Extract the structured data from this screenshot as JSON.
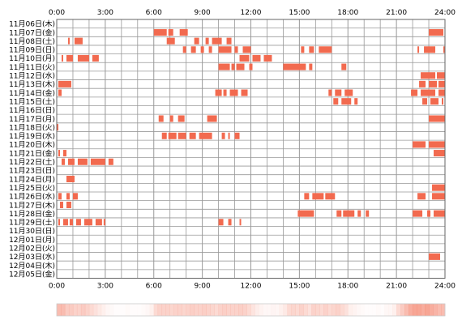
{
  "chart_data": {
    "type": "heatmap",
    "x_ticks": [
      "0:00",
      "3:00",
      "6:00",
      "9:00",
      "12:00",
      "15:00",
      "18:00",
      "21:00",
      "24:00"
    ],
    "x_range_hours": [
      0,
      24
    ],
    "days": [
      "11月06日(木)",
      "11月07日(金)",
      "11月08日(土)",
      "11月09日(日)",
      "11月10日(月)",
      "11月11日(火)",
      "11月12日(水)",
      "11月13日(木)",
      "11月14日(金)",
      "11月15日(土)",
      "11月16日(日)",
      "11月17日(月)",
      "11月18日(火)",
      "11月19日(水)",
      "11月20日(木)",
      "11月21日(金)",
      "11月22日(土)",
      "11月23日(日)",
      "11月24日(月)",
      "11月25日(火)",
      "11月26日(水)",
      "11月27日(木)",
      "11月28日(金)",
      "11月29日(土)",
      "11月30日(日)",
      "12月01日(月)",
      "12月02日(火)",
      "12月03日(水)",
      "12月04日(木)",
      "12月05日(金)"
    ],
    "activity_color": "#f26a4f",
    "grid_color": "#999999",
    "rows": [
      [],
      [
        [
          6.0,
          6.8
        ],
        [
          6.9,
          7.2
        ],
        [
          7.6,
          8.1
        ],
        [
          23.0,
          23.9
        ]
      ],
      [
        [
          0.7,
          0.8
        ],
        [
          1.1,
          1.6
        ],
        [
          6.8,
          7.3
        ],
        [
          8.5,
          8.8
        ],
        [
          9.2,
          9.4
        ],
        [
          9.6,
          10.2
        ],
        [
          10.5,
          10.8
        ]
      ],
      [
        [
          7.8,
          8.0
        ],
        [
          8.3,
          8.6
        ],
        [
          8.9,
          9.1
        ],
        [
          9.4,
          9.6
        ],
        [
          10.0,
          10.8
        ],
        [
          11.0,
          11.2
        ],
        [
          11.5,
          12.0
        ],
        [
          15.1,
          15.3
        ],
        [
          15.6,
          15.9
        ],
        [
          16.2,
          17.0
        ],
        [
          22.3,
          22.4
        ],
        [
          22.7,
          23.4
        ],
        [
          23.9,
          24.0
        ]
      ],
      [
        [
          0.3,
          0.4
        ],
        [
          0.6,
          1.0
        ],
        [
          1.3,
          2.0
        ],
        [
          2.2,
          2.6
        ],
        [
          11.3,
          11.9
        ],
        [
          12.1,
          12.6
        ],
        [
          12.8,
          13.3
        ]
      ],
      [
        [
          10.0,
          10.7
        ],
        [
          10.8,
          11.0
        ],
        [
          11.1,
          11.6
        ],
        [
          11.9,
          12.1
        ],
        [
          14.0,
          15.4
        ],
        [
          15.6,
          15.8
        ],
        [
          17.6,
          17.9
        ]
      ],
      [
        [
          22.5,
          23.4
        ],
        [
          23.5,
          24.0
        ]
      ],
      [
        [
          0.1,
          0.9
        ],
        [
          22.4,
          22.8
        ],
        [
          23.0,
          23.5
        ],
        [
          23.6,
          24.0
        ]
      ],
      [
        [
          0.1,
          0.3
        ],
        [
          9.8,
          10.2
        ],
        [
          10.3,
          10.5
        ],
        [
          10.7,
          11.2
        ],
        [
          11.4,
          11.8
        ],
        [
          16.8,
          17.0
        ],
        [
          17.2,
          17.6
        ],
        [
          17.8,
          18.3
        ],
        [
          21.9,
          22.3
        ],
        [
          22.5,
          23.4
        ],
        [
          23.6,
          24.0
        ]
      ],
      [
        [
          17.1,
          17.4
        ],
        [
          17.6,
          18.2
        ],
        [
          18.4,
          18.6
        ],
        [
          22.6,
          22.9
        ],
        [
          23.1,
          23.6
        ],
        [
          23.8,
          23.9
        ]
      ],
      [],
      [
        [
          6.3,
          6.6
        ],
        [
          7.0,
          7.2
        ],
        [
          7.5,
          7.9
        ],
        [
          9.3,
          9.9
        ],
        [
          23.0,
          24.0
        ]
      ],
      [
        [
          0.0,
          0.1
        ]
      ],
      [
        [
          6.5,
          6.8
        ],
        [
          6.9,
          7.4
        ],
        [
          7.5,
          8.0
        ],
        [
          8.2,
          8.6
        ],
        [
          8.8,
          9.6
        ],
        [
          10.2,
          10.4
        ],
        [
          10.6,
          10.7
        ],
        [
          11.0,
          11.3
        ]
      ],
      [
        [
          22.0,
          22.8
        ],
        [
          23.0,
          24.0
        ]
      ],
      [
        [
          0.1,
          0.2
        ],
        [
          0.4,
          0.6
        ],
        [
          23.3,
          24.0
        ]
      ],
      [
        [
          0.3,
          0.5
        ],
        [
          0.7,
          1.1
        ],
        [
          1.3,
          1.9
        ],
        [
          2.1,
          3.0
        ],
        [
          3.2,
          3.5
        ]
      ],
      [],
      [
        [
          0.6,
          1.1
        ]
      ],
      [
        [
          23.2,
          24.0
        ]
      ],
      [
        [
          0.1,
          0.3
        ],
        [
          0.6,
          0.8
        ],
        [
          1.0,
          1.3
        ],
        [
          15.3,
          15.6
        ],
        [
          15.8,
          16.5
        ],
        [
          16.6,
          17.2
        ],
        [
          22.3,
          22.8
        ],
        [
          23.2,
          24.0
        ]
      ],
      [
        [
          0.2,
          0.4
        ],
        [
          0.6,
          0.9
        ]
      ],
      [
        [
          14.9,
          15.9
        ],
        [
          17.3,
          17.6
        ],
        [
          17.7,
          18.4
        ],
        [
          18.6,
          18.8
        ],
        [
          19.1,
          19.3
        ],
        [
          22.0,
          22.6
        ],
        [
          22.9,
          23.1
        ],
        [
          23.3,
          24.0
        ]
      ],
      [
        [
          0.1,
          0.2
        ],
        [
          0.4,
          0.7
        ],
        [
          0.8,
          1.0
        ],
        [
          1.2,
          1.5
        ],
        [
          1.7,
          2.2
        ],
        [
          2.4,
          2.8
        ],
        [
          2.9,
          3.0
        ],
        [
          10.0,
          10.3
        ],
        [
          10.6,
          10.8
        ],
        [
          11.3,
          11.4
        ]
      ],
      [],
      [],
      [],
      [
        [
          23.0,
          23.7
        ]
      ],
      [],
      []
    ],
    "density_color": "#f26a4f",
    "density": [
      0.45,
      0.45,
      0.35,
      0.35,
      0.3,
      0.3,
      0.35,
      0.3,
      0.25,
      0.2,
      0.15,
      0.1,
      0.06,
      0.04,
      0.02,
      0.02,
      0.02,
      0.03,
      0.02,
      0.02,
      0.02,
      0.03,
      0.05,
      0.1,
      0.25,
      0.3,
      0.3,
      0.3,
      0.28,
      0.3,
      0.3,
      0.28,
      0.3,
      0.32,
      0.3,
      0.3,
      0.32,
      0.3,
      0.28,
      0.25,
      0.3,
      0.32,
      0.3,
      0.3,
      0.3,
      0.32,
      0.3,
      0.25,
      0.18,
      0.12,
      0.08,
      0.05,
      0.05,
      0.07,
      0.06,
      0.1,
      0.15,
      0.25,
      0.28,
      0.25,
      0.3,
      0.25,
      0.2,
      0.3,
      0.28,
      0.25,
      0.3,
      0.25,
      0.28,
      0.3,
      0.25,
      0.2,
      0.1,
      0.08,
      0.05,
      0.03,
      0.02,
      0.02,
      0.02,
      0.03,
      0.02,
      0.05,
      0.06,
      0.1,
      0.25,
      0.35,
      0.45,
      0.55,
      0.6,
      0.6,
      0.55,
      0.6,
      0.55,
      0.5,
      0.45,
      0.45
    ]
  }
}
